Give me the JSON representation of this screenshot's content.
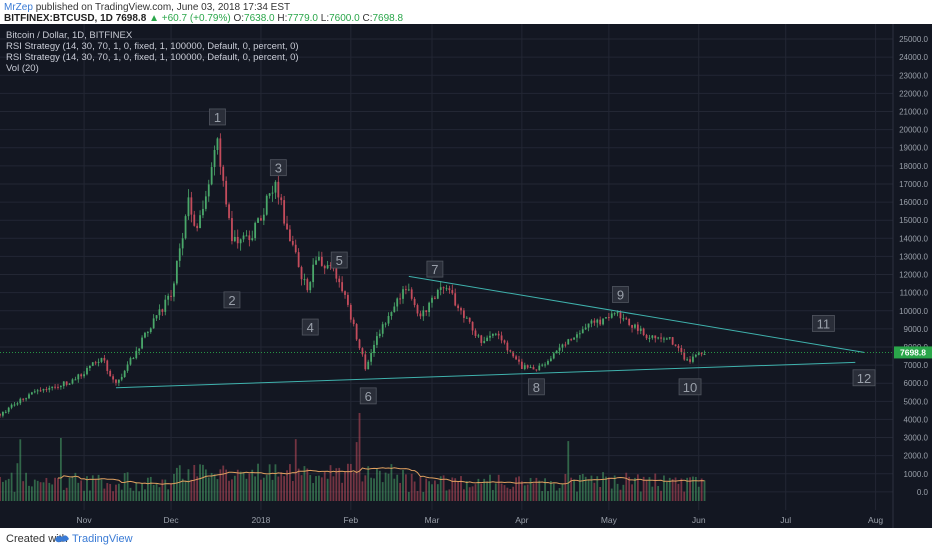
{
  "header": {
    "author": "MrZep",
    "published": "published on TradingView.com, June 03, 2018 17:34 EST",
    "symbol": "BITFINEX:BTCUSD, 1D",
    "last": "7698.8",
    "change": "+60.7 (+0.79%)",
    "ohlc": [
      {
        "k": "O:",
        "v": "7638.0"
      },
      {
        "k": "H:",
        "v": "7779.0"
      },
      {
        "k": "L:",
        "v": "7600.0"
      },
      {
        "k": "C:",
        "v": "7698.8"
      }
    ]
  },
  "legend": [
    "Bitcoin / Dollar, 1D, BITFINEX",
    "RSI Strategy (14, 30, 70, 1, 0, fixed, 1, 100000, Default, 0, percent, 0)",
    "RSI Strategy (14, 30, 70, 1, 0, fixed, 1, 100000, Default, 0, percent, 0)",
    "Vol (20)"
  ],
  "footer": {
    "created": "Created with",
    "brand": "TradingView"
  },
  "colors": {
    "background": "#131722",
    "up": "#4aa86a",
    "down": "#c44c5c",
    "trendline": "#3fb2ad",
    "ma": "#e0a060",
    "label_bg": "#2a2e39",
    "label_text": "#9aa0aa",
    "price_tag": "#2aa64a"
  },
  "chart_data": {
    "type": "candlestick",
    "title": "Bitcoin / Dollar, 1D, BITFINEX",
    "ylim": [
      -1000,
      25500
    ],
    "y_ticks": [
      0,
      1000,
      2000,
      3000,
      4000,
      5000,
      6000,
      7000,
      8000,
      9000,
      10000,
      11000,
      12000,
      13000,
      14000,
      15000,
      16000,
      17000,
      18000,
      19000,
      20000,
      21000,
      22000,
      23000,
      24000,
      25000
    ],
    "x_ticks": [
      "Nov",
      "Dec",
      "2018",
      "Feb",
      "Mar",
      "Apr",
      "May",
      "Jun",
      "Jul",
      "Aug"
    ],
    "x_tick_dates": [
      "2017-11-01",
      "2017-12-01",
      "2018-01-01",
      "2018-02-01",
      "2018-03-01",
      "2018-04-01",
      "2018-05-01",
      "2018-06-01",
      "2018-07-01",
      "2018-08-01"
    ],
    "date_range": [
      "2017-10-03",
      "2018-08-07"
    ],
    "last_date": "2018-06-03",
    "last_price": 7698.8,
    "price_path": [
      {
        "date": "2017-10-03",
        "price": 4300
      },
      {
        "date": "2017-10-15",
        "price": 5600
      },
      {
        "date": "2017-10-28",
        "price": 6100
      },
      {
        "date": "2017-11-07",
        "price": 7400
      },
      {
        "date": "2017-11-12",
        "price": 5900
      },
      {
        "date": "2017-11-20",
        "price": 8100
      },
      {
        "date": "2017-11-29",
        "price": 10400
      },
      {
        "date": "2017-12-01",
        "price": 10800
      },
      {
        "date": "2017-12-07",
        "price": 16000
      },
      {
        "date": "2017-12-10",
        "price": 14500
      },
      {
        "date": "2017-12-17",
        "price": 19500
      },
      {
        "date": "2017-12-22",
        "price": 13800
      },
      {
        "date": "2017-12-29",
        "price": 14200
      },
      {
        "date": "2018-01-06",
        "price": 17100
      },
      {
        "date": "2018-01-10",
        "price": 14500
      },
      {
        "date": "2018-01-17",
        "price": 11000
      },
      {
        "date": "2018-01-20",
        "price": 12900
      },
      {
        "date": "2018-01-28",
        "price": 11800
      },
      {
        "date": "2018-02-06",
        "price": 6900
      },
      {
        "date": "2018-02-10",
        "price": 8600
      },
      {
        "date": "2018-02-20",
        "price": 11300
      },
      {
        "date": "2018-02-25",
        "price": 9700
      },
      {
        "date": "2018-03-05",
        "price": 11500
      },
      {
        "date": "2018-03-18",
        "price": 8200
      },
      {
        "date": "2018-03-22",
        "price": 8900
      },
      {
        "date": "2018-04-01",
        "price": 6900
      },
      {
        "date": "2018-04-06",
        "price": 6700
      },
      {
        "date": "2018-04-15",
        "price": 8100
      },
      {
        "date": "2018-04-25",
        "price": 9300
      },
      {
        "date": "2018-05-05",
        "price": 9800
      },
      {
        "date": "2018-05-13",
        "price": 8700
      },
      {
        "date": "2018-05-22",
        "price": 8400
      },
      {
        "date": "2018-05-28",
        "price": 7200
      },
      {
        "date": "2018-06-03",
        "price": 7698.8
      }
    ],
    "trendlines": [
      {
        "name": "descending",
        "from": {
          "date": "2018-02-21",
          "price": 11900
        },
        "to": {
          "date": "2018-07-28",
          "price": 7700
        }
      },
      {
        "name": "ascending",
        "from": {
          "date": "2017-11-12",
          "price": 5750
        },
        "to": {
          "date": "2018-07-25",
          "price": 7150
        }
      }
    ],
    "annotations": [
      {
        "text": "1",
        "date": "2017-12-17",
        "price": 20700
      },
      {
        "text": "2",
        "date": "2017-12-22",
        "price": 10600
      },
      {
        "text": "3",
        "date": "2018-01-07",
        "price": 17900
      },
      {
        "text": "4",
        "date": "2018-01-18",
        "price": 9100
      },
      {
        "text": "5",
        "date": "2018-01-28",
        "price": 12800
      },
      {
        "text": "6",
        "date": "2018-02-07",
        "price": 5300
      },
      {
        "text": "7",
        "date": "2018-03-02",
        "price": 12300
      },
      {
        "text": "8",
        "date": "2018-04-06",
        "price": 5800
      },
      {
        "text": "9",
        "date": "2018-05-05",
        "price": 10900
      },
      {
        "text": "10",
        "date": "2018-05-29",
        "price": 5800
      },
      {
        "text": "11",
        "date": "2018-07-14",
        "price": 9300
      },
      {
        "text": "12",
        "date": "2018-07-28",
        "price": 6300
      }
    ],
    "volume_scale_max": 5000,
    "volume_ma_period": 20
  }
}
